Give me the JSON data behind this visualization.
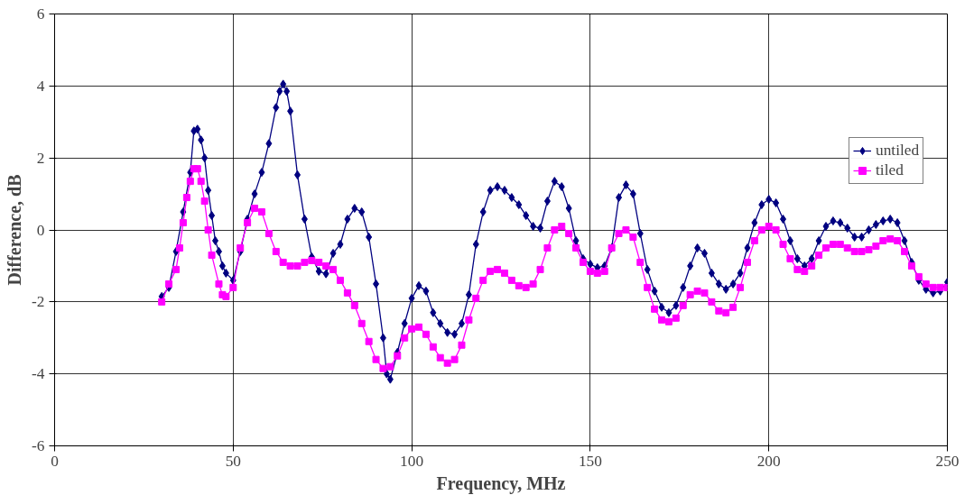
{
  "chart_data": {
    "type": "line",
    "xlabel": "Frequency, MHz",
    "ylabel": "Difference, dB",
    "xlim": [
      0,
      250
    ],
    "xticks": [
      0,
      50,
      100,
      150,
      200,
      250
    ],
    "ylim": [
      -6,
      6
    ],
    "yticks": [
      -6,
      -4,
      -2,
      0,
      2,
      4,
      6
    ],
    "grid": true,
    "legend": "right",
    "line_style": "solid",
    "series": [
      {
        "name": "untiled",
        "color": "#000080",
        "marker": "diamond",
        "x": [
          30,
          32,
          34,
          36,
          38,
          39,
          40,
          41,
          42,
          43,
          44,
          45,
          46,
          47,
          48,
          50,
          52,
          54,
          56,
          58,
          60,
          62,
          63,
          64,
          65,
          66,
          68,
          70,
          72,
          74,
          76,
          78,
          80,
          82,
          84,
          86,
          88,
          90,
          92,
          93,
          94,
          96,
          98,
          100,
          102,
          104,
          106,
          108,
          110,
          112,
          114,
          116,
          118,
          120,
          122,
          124,
          126,
          128,
          130,
          132,
          134,
          136,
          138,
          140,
          142,
          144,
          146,
          148,
          150,
          152,
          154,
          156,
          158,
          160,
          162,
          164,
          166,
          168,
          170,
          172,
          174,
          176,
          178,
          180,
          182,
          184,
          186,
          188,
          190,
          192,
          194,
          196,
          198,
          200,
          202,
          204,
          206,
          208,
          210,
          212,
          214,
          216,
          218,
          220,
          222,
          224,
          226,
          228,
          230,
          232,
          234,
          236,
          238,
          240,
          242,
          244,
          246,
          248,
          250
        ],
        "values": [
          -1.85,
          -1.6,
          -0.6,
          0.5,
          1.6,
          2.75,
          2.8,
          2.5,
          2.0,
          1.1,
          0.4,
          -0.3,
          -0.6,
          -1.0,
          -1.2,
          -1.4,
          -0.6,
          0.3,
          1.0,
          1.6,
          2.4,
          3.4,
          3.85,
          4.05,
          3.85,
          3.3,
          1.53,
          0.3,
          -0.75,
          -1.15,
          -1.22,
          -0.65,
          -0.4,
          0.3,
          0.6,
          0.5,
          -0.2,
          -1.5,
          -3.0,
          -4.0,
          -4.15,
          -3.4,
          -2.6,
          -1.9,
          -1.55,
          -1.7,
          -2.3,
          -2.6,
          -2.85,
          -2.9,
          -2.6,
          -1.8,
          -0.4,
          0.5,
          1.1,
          1.2,
          1.1,
          0.9,
          0.7,
          0.4,
          0.1,
          0.05,
          0.8,
          1.35,
          1.2,
          0.6,
          -0.3,
          -0.8,
          -0.95,
          -1.05,
          -1.0,
          -0.5,
          0.9,
          1.25,
          1.0,
          -0.1,
          -1.1,
          -1.7,
          -2.15,
          -2.3,
          -2.1,
          -1.6,
          -1.0,
          -0.5,
          -0.65,
          -1.2,
          -1.5,
          -1.65,
          -1.5,
          -1.2,
          -0.5,
          0.2,
          0.7,
          0.85,
          0.75,
          0.3,
          -0.3,
          -0.8,
          -1.0,
          -0.8,
          -0.3,
          0.1,
          0.25,
          0.2,
          0.05,
          -0.2,
          -0.2,
          0.0,
          0.15,
          0.25,
          0.3,
          0.2,
          -0.3,
          -0.9,
          -1.4,
          -1.65,
          -1.75,
          -1.7,
          -1.45
        ]
      },
      {
        "name": "tiled",
        "color": "#ff00ff",
        "marker": "square",
        "x": [
          30,
          32,
          34,
          35,
          36,
          37,
          38,
          39,
          40,
          41,
          42,
          43,
          44,
          46,
          47,
          48,
          50,
          52,
          54,
          56,
          58,
          60,
          62,
          64,
          66,
          68,
          70,
          72,
          74,
          76,
          78,
          80,
          82,
          84,
          86,
          88,
          90,
          92,
          94,
          96,
          98,
          100,
          102,
          104,
          106,
          108,
          110,
          112,
          114,
          116,
          118,
          120,
          122,
          124,
          126,
          128,
          130,
          132,
          134,
          136,
          138,
          140,
          142,
          144,
          146,
          148,
          150,
          152,
          154,
          156,
          158,
          160,
          162,
          164,
          166,
          168,
          170,
          172,
          174,
          176,
          178,
          180,
          182,
          184,
          186,
          188,
          190,
          192,
          194,
          196,
          198,
          200,
          202,
          204,
          206,
          208,
          210,
          212,
          214,
          216,
          218,
          220,
          222,
          224,
          226,
          228,
          230,
          232,
          234,
          236,
          238,
          240,
          242,
          244,
          246,
          248,
          250
        ],
        "values": [
          -2.0,
          -1.5,
          -1.1,
          -0.5,
          0.2,
          0.9,
          1.35,
          1.7,
          1.7,
          1.35,
          0.8,
          0.0,
          -0.7,
          -1.5,
          -1.8,
          -1.85,
          -1.6,
          -0.5,
          0.2,
          0.6,
          0.5,
          -0.1,
          -0.6,
          -0.9,
          -1.0,
          -1.0,
          -0.9,
          -0.85,
          -0.9,
          -1.0,
          -1.1,
          -1.4,
          -1.75,
          -2.1,
          -2.6,
          -3.1,
          -3.6,
          -3.85,
          -3.8,
          -3.5,
          -3.0,
          -2.75,
          -2.7,
          -2.9,
          -3.25,
          -3.55,
          -3.7,
          -3.6,
          -3.2,
          -2.5,
          -1.9,
          -1.4,
          -1.15,
          -1.1,
          -1.2,
          -1.4,
          -1.55,
          -1.6,
          -1.5,
          -1.1,
          -0.5,
          0.0,
          0.1,
          -0.1,
          -0.5,
          -0.9,
          -1.15,
          -1.2,
          -1.15,
          -0.5,
          -0.1,
          0.0,
          -0.2,
          -0.9,
          -1.6,
          -2.2,
          -2.5,
          -2.55,
          -2.45,
          -2.1,
          -1.8,
          -1.7,
          -1.75,
          -2.0,
          -2.25,
          -2.3,
          -2.15,
          -1.6,
          -0.9,
          -0.3,
          0.0,
          0.1,
          0.0,
          -0.4,
          -0.8,
          -1.1,
          -1.15,
          -1.0,
          -0.7,
          -0.5,
          -0.4,
          -0.4,
          -0.5,
          -0.6,
          -0.6,
          -0.55,
          -0.45,
          -0.3,
          -0.25,
          -0.3,
          -0.6,
          -1.0,
          -1.3,
          -1.5,
          -1.6,
          -1.6,
          -1.6
        ]
      }
    ]
  }
}
